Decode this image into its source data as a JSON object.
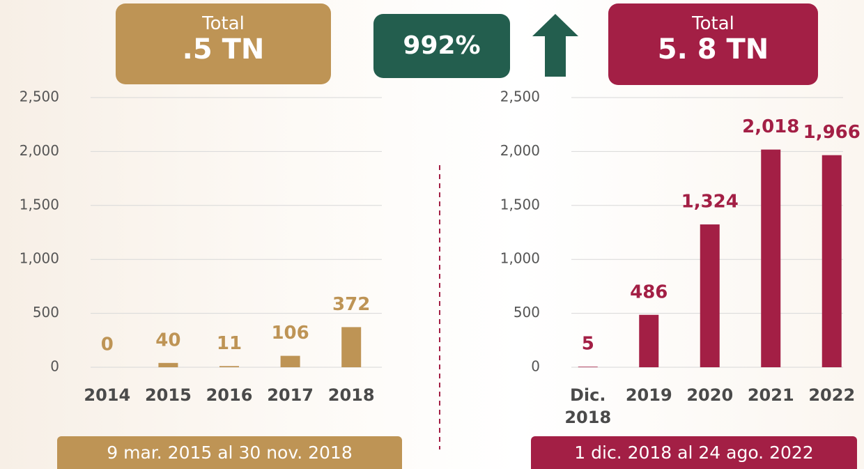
{
  "growth": "992%",
  "chart_data": [
    {
      "type": "bar",
      "total_label": "Total",
      "total_value": ".5 TN",
      "period": "9 mar. 2015 al 30 nov. 2018",
      "categories": [
        "2014",
        "2015",
        "2016",
        "2017",
        "2018"
      ],
      "values": [
        0,
        40,
        11,
        106,
        372
      ],
      "color": "#be9455",
      "ylim": [
        0,
        2500
      ],
      "yticks": [
        0,
        500,
        {
          "value": 1000,
          "label": "1,000"
        },
        {
          "value": 1500,
          "label": "1,500"
        },
        {
          "value": 2000,
          "label": "2,000"
        },
        {
          "value": 2500,
          "label": "2,500"
        }
      ],
      "grid": true
    },
    {
      "type": "bar",
      "total_label": "Total",
      "total_value": "5. 8 TN",
      "period": "1 dic. 2018 al 24 ago. 2022",
      "categories": [
        "Dic. 2018",
        "2019",
        "2020",
        "2021",
        "2022"
      ],
      "values": [
        5,
        486,
        1324,
        2018,
        1966
      ],
      "value_labels": [
        "5",
        "486",
        "1,324",
        "2,018",
        "1,966"
      ],
      "color": "#a31f45",
      "ylim": [
        0,
        2500
      ],
      "yticks": [
        0,
        500,
        {
          "value": 1000,
          "label": "1,000"
        },
        {
          "value": 1500,
          "label": "1,500"
        },
        {
          "value": 2000,
          "label": "2,000"
        },
        {
          "value": 2500,
          "label": "2,500"
        }
      ],
      "grid": true
    }
  ]
}
